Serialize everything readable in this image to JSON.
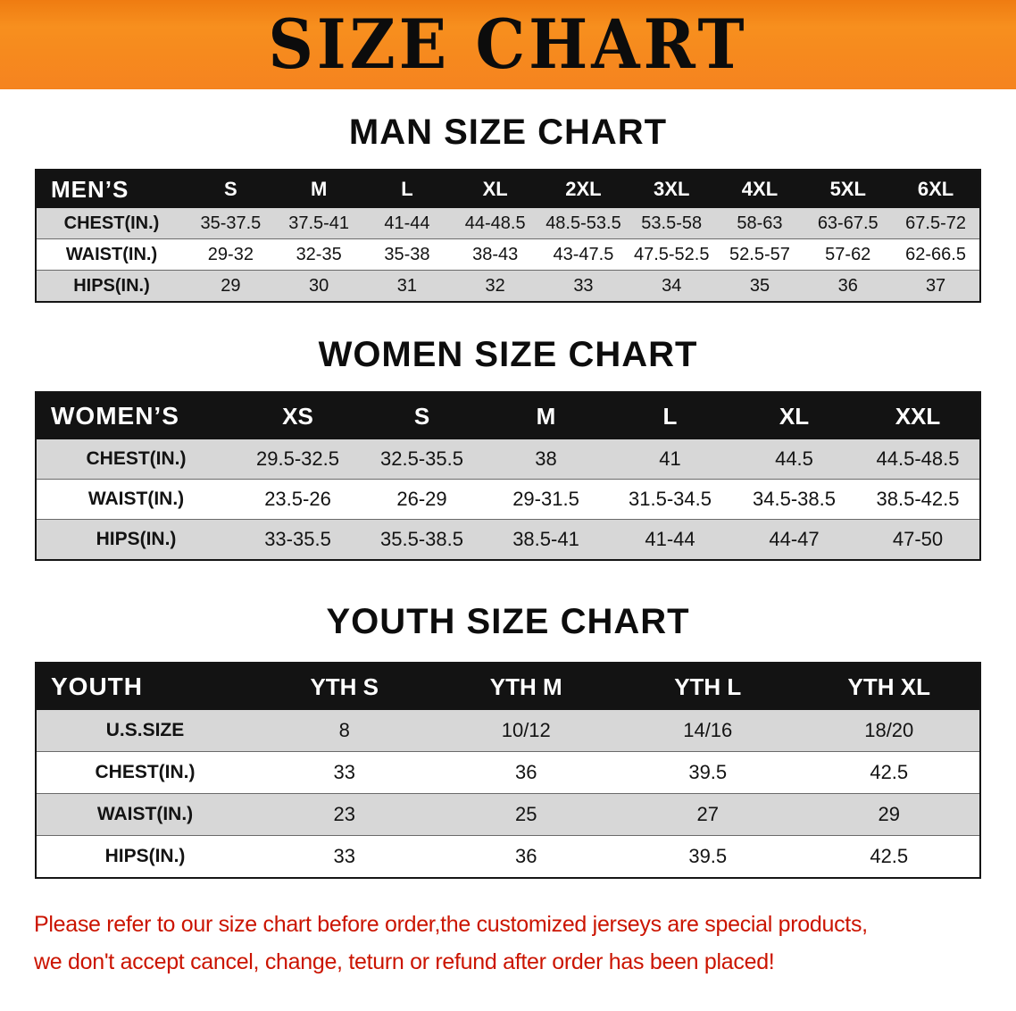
{
  "banner": {
    "title": "SIZE CHART"
  },
  "colors": {
    "banner_bg": "#f5831f",
    "table_header_bg": "#131313",
    "row_stripe": "#d7d7d7",
    "disclaimer_text": "#cb1400"
  },
  "sections": [
    {
      "heading": "MAN SIZE CHART",
      "table": {
        "header": [
          "MEN’S",
          "S",
          "M",
          "L",
          "XL",
          "2XL",
          "3XL",
          "4XL",
          "5XL",
          "6XL"
        ],
        "rows": [
          {
            "label": "CHEST(IN.)",
            "values": [
              "35-37.5",
              "37.5-41",
              "41-44",
              "44-48.5",
              "48.5-53.5",
              "53.5-58",
              "58-63",
              "63-67.5",
              "67.5-72"
            ]
          },
          {
            "label": "WAIST(IN.)",
            "values": [
              "29-32",
              "32-35",
              "35-38",
              "38-43",
              "43-47.5",
              "47.5-52.5",
              "52.5-57",
              "57-62",
              "62-66.5"
            ]
          },
          {
            "label": "HIPS(IN.)",
            "values": [
              "29",
              "30",
              "31",
              "32",
              "33",
              "34",
              "35",
              "36",
              "37"
            ]
          }
        ]
      }
    },
    {
      "heading": "WOMEN SIZE CHART",
      "table": {
        "header": [
          "WOMEN’S",
          "XS",
          "S",
          "M",
          "L",
          "XL",
          "XXL"
        ],
        "rows": [
          {
            "label": "CHEST(IN.)",
            "values": [
              "29.5-32.5",
              "32.5-35.5",
              "38",
              "41",
              "44.5",
              "44.5-48.5"
            ]
          },
          {
            "label": "WAIST(IN.)",
            "values": [
              "23.5-26",
              "26-29",
              "29-31.5",
              "31.5-34.5",
              "34.5-38.5",
              "38.5-42.5"
            ]
          },
          {
            "label": "HIPS(IN.)",
            "values": [
              "33-35.5",
              "35.5-38.5",
              "38.5-41",
              "41-44",
              "44-47",
              "47-50"
            ]
          }
        ]
      }
    },
    {
      "heading": "YOUTH SIZE CHART",
      "table": {
        "header": [
          "YOUTH",
          "YTH S",
          "YTH M",
          "YTH L",
          "YTH XL"
        ],
        "rows": [
          {
            "label": "U.S.SIZE",
            "values": [
              "8",
              "10/12",
              "14/16",
              "18/20"
            ]
          },
          {
            "label": "CHEST(IN.)",
            "values": [
              "33",
              "36",
              "39.5",
              "42.5"
            ]
          },
          {
            "label": "WAIST(IN.)",
            "values": [
              "23",
              "25",
              "27",
              "29"
            ]
          },
          {
            "label": "HIPS(IN.)",
            "values": [
              "33",
              "36",
              "39.5",
              "42.5"
            ]
          }
        ]
      }
    }
  ],
  "disclaimer": {
    "line1": "Please refer to our size chart before order,the customized jerseys are special products,",
    "line2": "we don't accept cancel, change, teturn or refund after order has been placed!"
  }
}
